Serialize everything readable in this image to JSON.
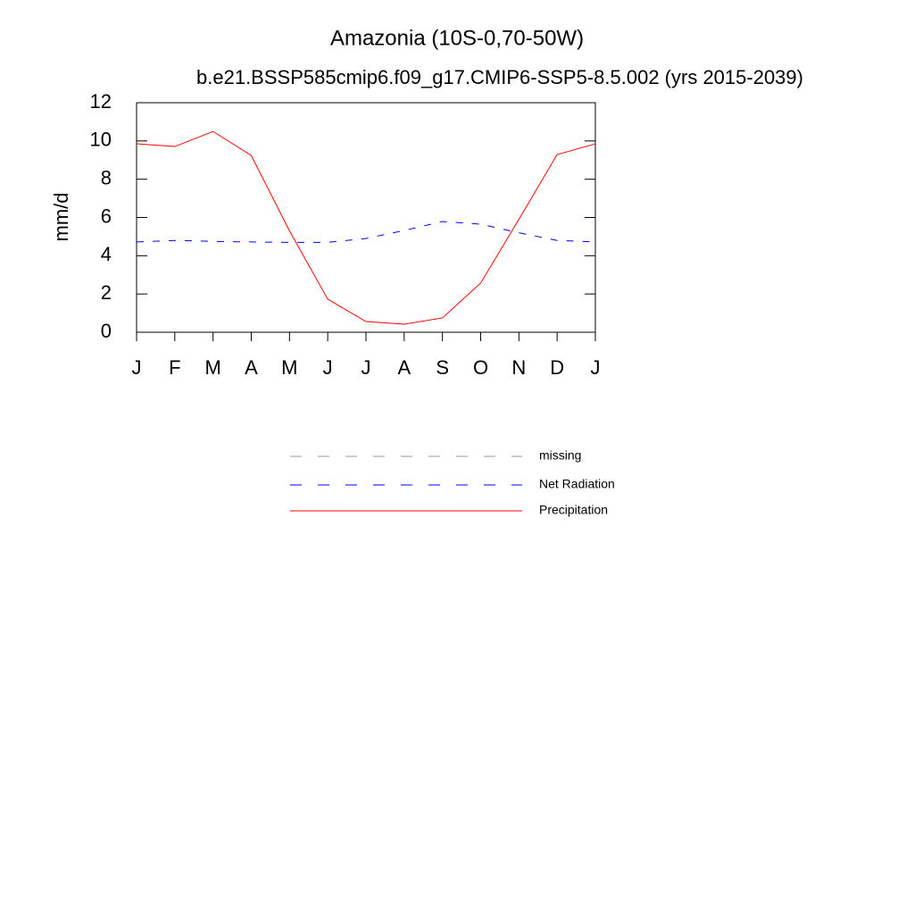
{
  "chart_data": {
    "type": "line",
    "title": "Amazonia (10S-0,70-50W)",
    "subtitle": "b.e21.BSSP585cmip6.f09_g17.CMIP6-SSP5-8.5.002 (yrs 2015-2039)",
    "y_label": "mm/d",
    "categories": [
      "J",
      "F",
      "M",
      "A",
      "M",
      "J",
      "J",
      "A",
      "S",
      "O",
      "N",
      "D",
      "J"
    ],
    "series": [
      {
        "name": "missing",
        "color": "#999999",
        "dash": "8,10",
        "values": [
          null,
          null,
          null,
          null,
          null,
          null,
          null,
          null,
          null,
          null,
          null,
          null,
          null
        ]
      },
      {
        "name": "Net Radiation",
        "color": "#0000ff",
        "dash": "8,10",
        "values": [
          4.72,
          4.8,
          4.75,
          4.72,
          4.7,
          4.7,
          4.9,
          5.32,
          5.79,
          5.65,
          5.2,
          4.8,
          4.72
        ]
      },
      {
        "name": "Precipitation",
        "color": "#ff0000",
        "values": [
          9.85,
          9.71,
          10.5,
          9.24,
          5.3,
          1.73,
          0.56,
          0.42,
          0.75,
          2.57,
          5.9,
          9.29,
          9.85
        ]
      }
    ],
    "ylim": [
      0,
      12
    ],
    "yticks": [
      0,
      2,
      4,
      6,
      8,
      10,
      12
    ]
  }
}
